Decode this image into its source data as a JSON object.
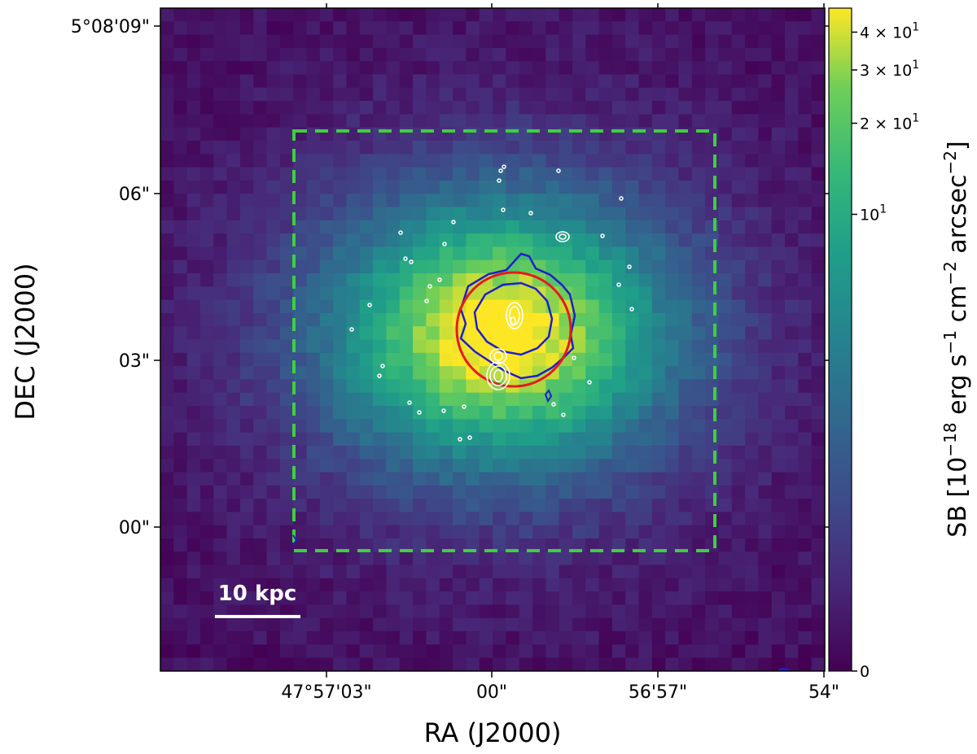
{
  "chart_data": {
    "type": "heatmap",
    "title": "",
    "xlabel": "RA (J2000)",
    "ylabel": "DEC (J2000)",
    "x_ticks": [
      "47°57'03\"",
      "00\"",
      "56'57\"",
      "54\""
    ],
    "y_ticks": [
      "5°08'09\"",
      "06\"",
      "03\"",
      "00\""
    ],
    "colorbar": {
      "label": "SB [10^-18 erg s^-1 cm^-2 arcsec^-2]",
      "label_main": "SB [10",
      "label_exp1": "−18",
      "label_mid1": " erg s",
      "label_exp2": "−1",
      "label_mid2": " cm",
      "label_exp3": "−2",
      "label_mid3": " arcsec",
      "label_exp4": "−2",
      "label_end": "]",
      "scale": "log",
      "colormap": "viridis",
      "range": [
        0,
        48
      ],
      "ticks": [
        {
          "value": 0,
          "text": "0",
          "mantissa": "",
          "exponent": ""
        },
        {
          "value": 10,
          "text": "10",
          "mantissa": "",
          "exponent": "1"
        },
        {
          "value": 20,
          "text": "2 × 10",
          "mantissa": "2",
          "exponent": "1"
        },
        {
          "value": 30,
          "text": "3 × 10",
          "mantissa": "3",
          "exponent": "1"
        },
        {
          "value": 40,
          "text": "4 × 10",
          "mantissa": "4",
          "exponent": "1"
        }
      ]
    },
    "annotations": {
      "scale_bar": "10 kpc",
      "box_color": "#3fcf3f",
      "circle_color": "#e8191c",
      "contour_colors": [
        "#1f1fcc",
        "#ffffff"
      ]
    },
    "grid": false
  }
}
